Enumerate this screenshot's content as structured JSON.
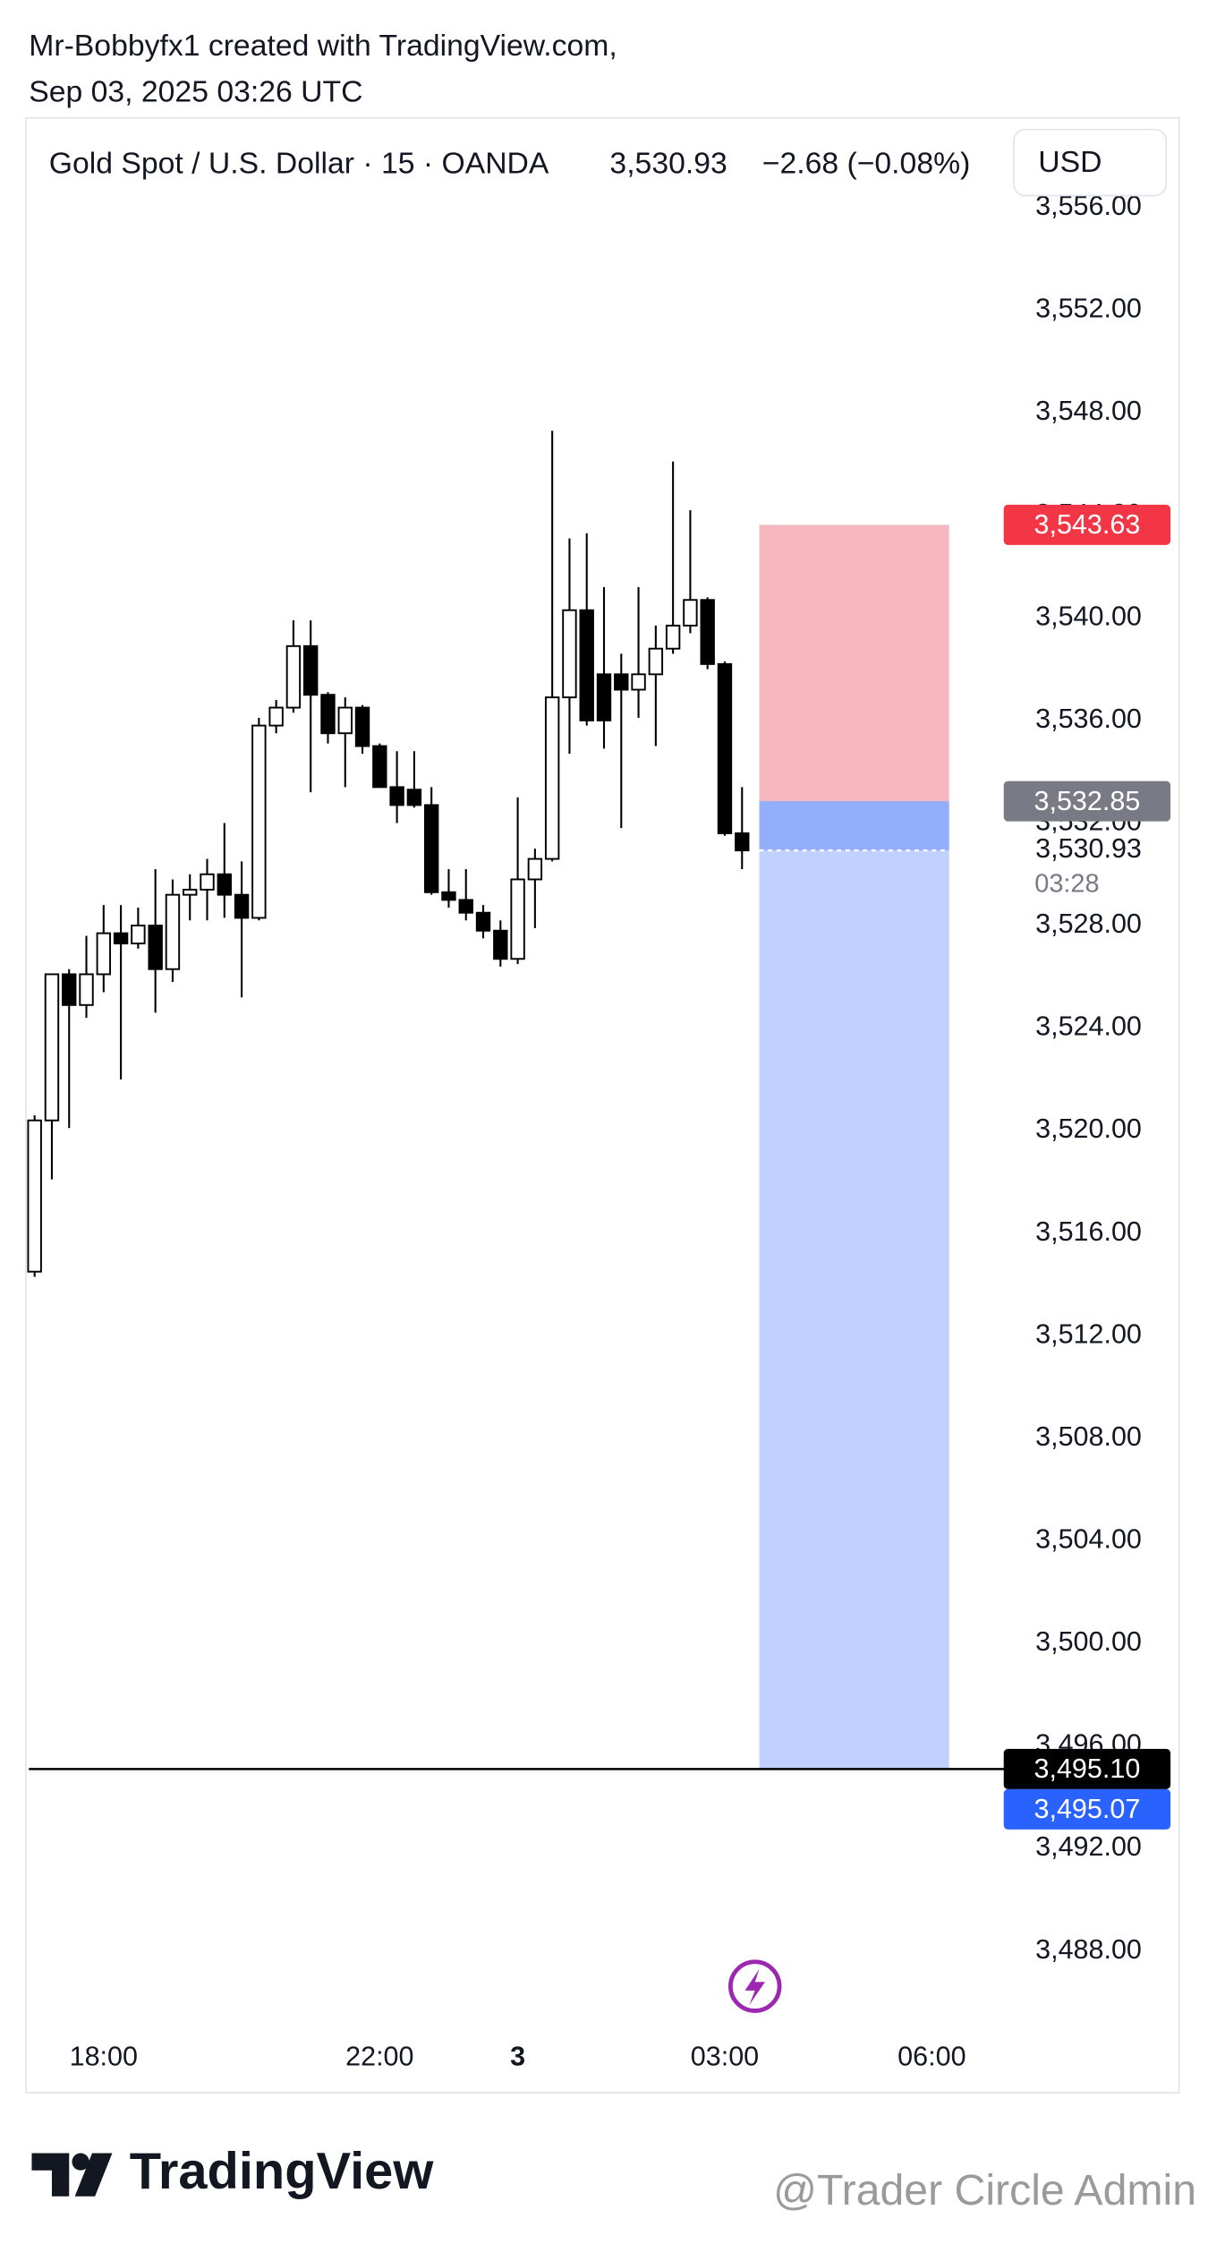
{
  "header": {
    "author_line": "Mr-Bobbyfx1 created with TradingView.com,",
    "date_line": "Sep 03, 2025 03:26 UTC"
  },
  "legend": {
    "symbol": "Gold Spot / U.S. Dollar · 15 · OANDA",
    "last": "3,530.93",
    "change": "−2.68 (−0.08%)",
    "currency": "USD"
  },
  "chart_data": {
    "type": "candlestick",
    "x": [
      "17:00",
      "17:15",
      "17:30",
      "17:45",
      "18:00",
      "18:15",
      "18:30",
      "18:45",
      "19:00",
      "19:15",
      "19:30",
      "19:45",
      "20:00",
      "20:15",
      "20:30",
      "20:45",
      "21:00",
      "21:15",
      "21:30",
      "21:45",
      "22:00",
      "22:15",
      "22:30",
      "22:45",
      "23:00",
      "23:15",
      "23:30",
      "23:45",
      "00:00",
      "00:15",
      "00:30",
      "00:45",
      "01:00",
      "01:15",
      "01:30",
      "01:45",
      "02:00",
      "02:15",
      "02:30",
      "02:45",
      "03:00",
      "03:15"
    ],
    "open": [
      3514.5,
      3520.4,
      3526.1,
      3524.9,
      3526.1,
      3527.7,
      3527.3,
      3528.0,
      3526.3,
      3529.2,
      3529.4,
      3530.0,
      3529.2,
      3528.3,
      3535.8,
      3536.5,
      3538.9,
      3537.0,
      3535.5,
      3536.5,
      3535.0,
      3533.4,
      3533.3,
      3532.7,
      3529.3,
      3529.0,
      3528.5,
      3527.8,
      3526.7,
      3529.8,
      3530.6,
      3536.9,
      3540.3,
      3537.8,
      3537.8,
      3537.2,
      3537.8,
      3538.8,
      3539.7,
      3540.7,
      3538.2,
      3531.6
    ],
    "high": [
      3520.6,
      3526.1,
      3526.3,
      3527.6,
      3528.8,
      3528.8,
      3528.7,
      3530.2,
      3529.8,
      3530.0,
      3530.6,
      3532.0,
      3530.5,
      3536.1,
      3536.8,
      3539.9,
      3539.9,
      3537.1,
      3536.9,
      3536.6,
      3535.1,
      3534.8,
      3534.8,
      3533.4,
      3530.2,
      3530.2,
      3528.8,
      3528.2,
      3533.0,
      3531.0,
      3547.3,
      3543.1,
      3543.3,
      3541.2,
      3538.6,
      3541.2,
      3539.7,
      3546.1,
      3544.2,
      3540.8,
      3538.3,
      3533.4
    ],
    "low": [
      3514.3,
      3518.1,
      3520.1,
      3524.4,
      3525.4,
      3522.0,
      3527.1,
      3524.6,
      3525.8,
      3528.2,
      3528.2,
      3528.3,
      3525.2,
      3528.2,
      3535.5,
      3536.3,
      3533.2,
      3535.1,
      3533.4,
      3534.7,
      3533.4,
      3532.0,
      3532.6,
      3529.2,
      3528.7,
      3528.2,
      3527.5,
      3526.4,
      3526.5,
      3527.9,
      3530.5,
      3534.7,
      3535.8,
      3534.9,
      3531.8,
      3536.1,
      3535.0,
      3538.6,
      3539.4,
      3538.0,
      3531.5,
      3530.2
    ],
    "close": [
      3520.4,
      3526.1,
      3524.9,
      3526.1,
      3527.7,
      3527.3,
      3528.0,
      3526.3,
      3529.2,
      3529.4,
      3530.0,
      3529.2,
      3528.3,
      3535.8,
      3536.5,
      3538.9,
      3537.0,
      3535.5,
      3536.5,
      3535.0,
      3533.4,
      3532.7,
      3532.7,
      3529.3,
      3529.0,
      3528.5,
      3527.8,
      3526.7,
      3529.8,
      3530.6,
      3536.9,
      3540.3,
      3536.0,
      3536.0,
      3537.2,
      3537.8,
      3538.8,
      3539.7,
      3540.7,
      3538.2,
      3531.6,
      3530.93
    ],
    "up_color": "#ffffff",
    "down_color": "#000000",
    "xlim": [
      "16:55",
      "07:05"
    ],
    "xticks": [
      "18:00",
      "22:00",
      {
        "value": "00:00",
        "label": "3"
      },
      "03:00",
      "06:00"
    ],
    "ylim": [
      3485.0,
      3559.5
    ],
    "yticks": [
      {
        "value": 3556,
        "label": "3,556.00"
      },
      {
        "value": 3552,
        "label": "3,552.00"
      },
      {
        "value": 3548,
        "label": "3,548.00"
      },
      {
        "value": 3544,
        "label": "3,544.00"
      },
      {
        "value": 3540,
        "label": "3,540.00"
      },
      {
        "value": 3536,
        "label": "3,536.00"
      },
      {
        "value": 3532,
        "label": "3,532.00"
      },
      {
        "value": 3528,
        "label": "3,528.00"
      },
      {
        "value": 3524,
        "label": "3,524.00"
      },
      {
        "value": 3520,
        "label": "3,520.00"
      },
      {
        "value": 3516,
        "label": "3,516.00"
      },
      {
        "value": 3512,
        "label": "3,512.00"
      },
      {
        "value": 3508,
        "label": "3,508.00"
      },
      {
        "value": 3504,
        "label": "3,504.00"
      },
      {
        "value": 3500,
        "label": "3,500.00"
      },
      {
        "value": 3496,
        "label": "3,496.00"
      },
      {
        "value": 3492,
        "label": "3,492.00"
      },
      {
        "value": 3488,
        "label": "3,488.00"
      }
    ],
    "position": {
      "stop": 3543.63,
      "entry": 3532.85,
      "target": 3495.07,
      "start": "03:30",
      "end": "06:15",
      "stop_color": "#f7b7be",
      "target_color": "#c1d1ff",
      "open_color": "#93aefa"
    },
    "hline": {
      "value": 3495.1,
      "label": "3,495.10",
      "color": "#000000"
    },
    "price_labels": [
      {
        "value": 3543.63,
        "label": "3,543.63",
        "color": "#f23645"
      },
      {
        "value": 3532.85,
        "label": "3,532.85",
        "color": "#787b86"
      },
      {
        "value": 3495.07,
        "label": "3,495.07",
        "color": "#2962ff"
      }
    ],
    "last_price": {
      "value": 3530.93,
      "label": "3,530.93"
    },
    "countdown": "03:28"
  },
  "footer": {
    "brand": "TradingView",
    "watermark": "@Trader Circle Admin"
  }
}
